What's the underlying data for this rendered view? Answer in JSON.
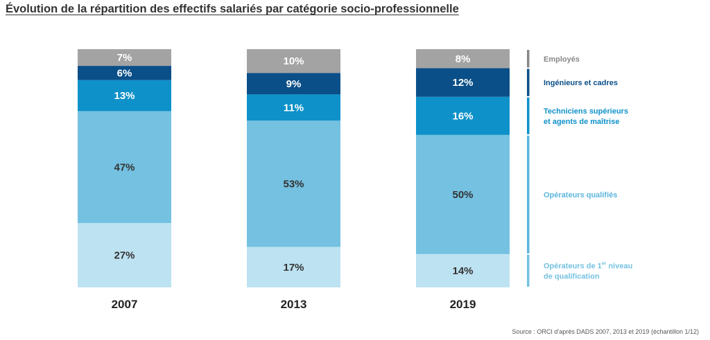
{
  "title": "Évolution de la répartition des effectifs salariés par catégorie socio-professionnelle",
  "source": "Source : ORCI d’après DADS 2007, 2013 et 2019 (échantillon 1/12)",
  "chart_data": {
    "type": "bar",
    "stacked": true,
    "normalized": true,
    "categories": [
      "2007",
      "2013",
      "2019"
    ],
    "series": [
      {
        "name": "Opérateurs de 1er niveau de qualification",
        "color": "#bde2f1",
        "text_color": "#333333",
        "values": [
          27,
          17,
          14
        ]
      },
      {
        "name": "Opérateurs qualifiés",
        "color": "#74c1e1",
        "text_color": "#333333",
        "values": [
          47,
          53,
          50
        ]
      },
      {
        "name": "Techniciens supérieurs et agents de maîtrise",
        "color": "#0e91c9",
        "text_color": "#ffffff",
        "values": [
          13,
          11,
          16
        ]
      },
      {
        "name": "Ingénieurs et cadres",
        "color": "#0a4f88",
        "text_color": "#ffffff",
        "values": [
          6,
          9,
          12
        ]
      },
      {
        "name": "Employés",
        "color": "#a3a3a3",
        "text_color": "#ffffff",
        "values": [
          7,
          10,
          8
        ]
      }
    ],
    "value_suffix": "%",
    "legend": {
      "placement": "right",
      "items": [
        {
          "lines": [
            "Employés"
          ],
          "color": "#888888"
        },
        {
          "lines": [
            "Ingénieurs et cadres"
          ],
          "color": "#0a4f88"
        },
        {
          "lines": [
            "Techniciens supérieurs",
            "et agents de maîtrise"
          ],
          "color": "#0e91c9"
        },
        {
          "lines": [
            "Opérateurs qualifiés"
          ],
          "color": "#5bb5dc"
        },
        {
          "lines": [
            "Opérateurs de 1",
            "de qualification"
          ],
          "superscript": "er",
          "superscript_suffix": " niveau",
          "color": "#74c1e1"
        }
      ]
    }
  }
}
